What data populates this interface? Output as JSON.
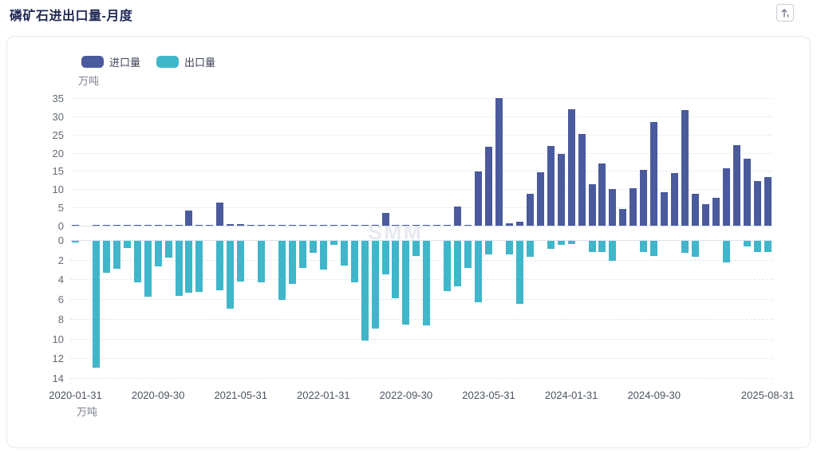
{
  "page": {
    "title": "磷矿石进出口量-月度"
  },
  "toolbar": {
    "export_icon": "arrow-up-export"
  },
  "chart_data": {
    "type": "bar",
    "title": "磷矿石进出口量-月度",
    "unit_label": "万吨",
    "watermark": "SMM",
    "grid": true,
    "legend_position": "top-left",
    "top_axis": {
      "min": 0,
      "max": 35,
      "ticks": [
        35,
        30,
        25,
        20,
        15,
        10,
        5,
        0
      ]
    },
    "bottom_axis": {
      "min": 0,
      "max": 14,
      "ticks": [
        0,
        2,
        4,
        6,
        8,
        10,
        12,
        14
      ],
      "direction": "down"
    },
    "x_tick_indices": [
      0,
      8,
      16,
      24,
      32,
      40,
      48,
      56,
      67
    ],
    "x": [
      "2020-01-31",
      "2020-02-29",
      "2020-03-31",
      "2020-04-30",
      "2020-05-31",
      "2020-06-30",
      "2020-07-31",
      "2020-08-31",
      "2020-09-30",
      "2020-10-31",
      "2020-11-30",
      "2020-12-31",
      "2021-01-31",
      "2021-02-28",
      "2021-03-31",
      "2021-04-30",
      "2021-05-31",
      "2021-06-30",
      "2021-07-31",
      "2021-08-31",
      "2021-09-30",
      "2021-10-31",
      "2021-11-30",
      "2021-12-31",
      "2022-01-31",
      "2022-02-28",
      "2022-03-31",
      "2022-04-30",
      "2022-05-31",
      "2022-06-30",
      "2022-07-31",
      "2022-08-31",
      "2022-09-30",
      "2022-10-31",
      "2022-11-30",
      "2022-12-31",
      "2023-01-31",
      "2023-02-28",
      "2023-03-31",
      "2023-04-30",
      "2023-05-31",
      "2023-06-30",
      "2023-07-31",
      "2023-08-31",
      "2023-09-30",
      "2023-10-31",
      "2023-11-30",
      "2023-12-31",
      "2024-01-31",
      "2024-02-29",
      "2024-03-31",
      "2024-04-30",
      "2024-05-31",
      "2024-06-30",
      "2024-07-31",
      "2024-08-31",
      "2024-09-30",
      "2024-10-31",
      "2024-11-30",
      "2024-12-31",
      "2025-01-31",
      "2025-02-28",
      "2025-03-31",
      "2025-04-30",
      "2025-05-31",
      "2025-06-30",
      "2025-07-31",
      "2025-08-31"
    ],
    "series": [
      {
        "name": "进口量",
        "color": "#4A5A9C",
        "axis": "top",
        "values": [
          0.1,
          0,
          0.1,
          0.3,
          0.3,
          0.1,
          0.1,
          0.2,
          0.1,
          0.1,
          0.2,
          4.2,
          0.2,
          0.1,
          6.3,
          0.4,
          0.4,
          0.3,
          0.2,
          0.1,
          0.2,
          0.1,
          0.1,
          0.2,
          0.1,
          0.3,
          0.2,
          0.1,
          0.2,
          0.3,
          3.5,
          0.3,
          0.2,
          0.1,
          0.2,
          0.1,
          0.2,
          5.3,
          0.1,
          14.9,
          21.7,
          34.9,
          0.6,
          1.0,
          8.7,
          14.6,
          21.8,
          19.7,
          31.9,
          25.2,
          11.4,
          17.0,
          10.0,
          4.6,
          10.3,
          15.4,
          28.5,
          9.2,
          14.5,
          31.8,
          8.8,
          5.9,
          7.7,
          15.8,
          22.2,
          18.3,
          12.3,
          13.4
        ]
      },
      {
        "name": "出口量",
        "color": "#3FB6C9",
        "axis": "bottom",
        "values": [
          0.15,
          0,
          12.9,
          3.2,
          2.8,
          0.7,
          4.2,
          5.65,
          2.6,
          1.7,
          5.6,
          5.3,
          5.2,
          0,
          5.0,
          6.9,
          4.1,
          0,
          4.2,
          0,
          6.0,
          4.4,
          2.75,
          1.2,
          2.9,
          0.4,
          2.5,
          4.2,
          10.1,
          8.9,
          3.4,
          5.8,
          8.5,
          1.5,
          8.6,
          0,
          5.1,
          4.6,
          2.75,
          6.2,
          1.4,
          0,
          1.4,
          6.4,
          1.6,
          0,
          0.8,
          0.4,
          0.3,
          0,
          1.1,
          1.1,
          2.05,
          0,
          0,
          1.1,
          1.5,
          0,
          0,
          1.25,
          1.65,
          0,
          0,
          2.15,
          0,
          0.6,
          1.15,
          1.15
        ]
      }
    ]
  }
}
